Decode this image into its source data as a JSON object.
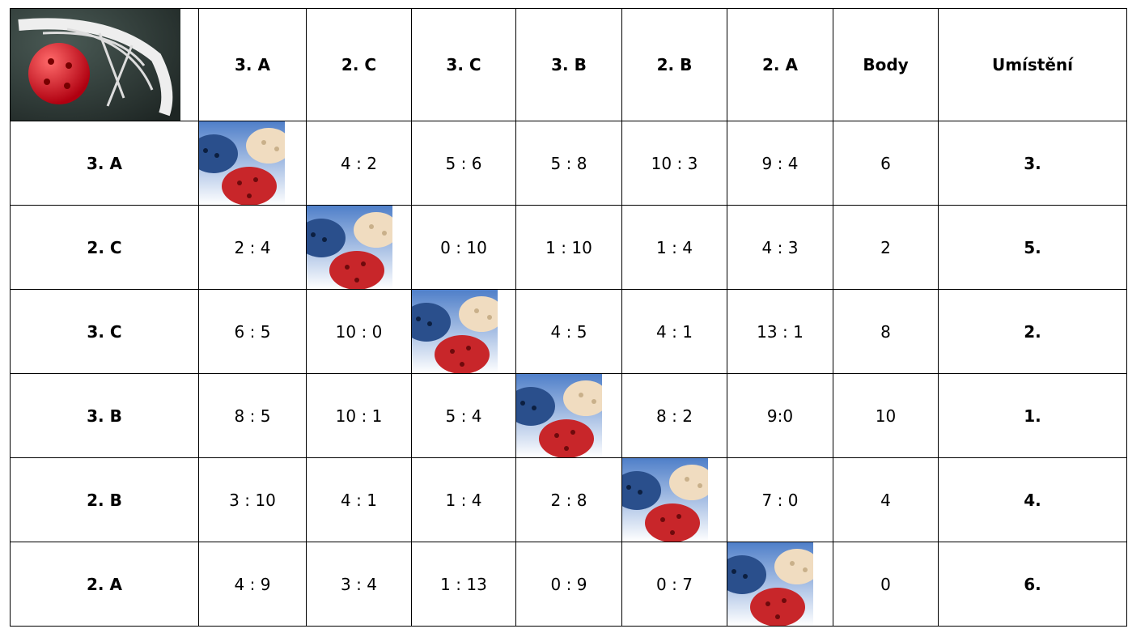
{
  "table": {
    "columns": [
      "3. A",
      "2. C",
      "3. C",
      "3. B",
      "2. B",
      "2. A",
      "Body",
      "Umístění"
    ],
    "rows": [
      {
        "team": "3. A",
        "results": [
          null,
          "4 : 2",
          "5 : 6",
          "5 : 8",
          "10 : 3",
          "9 : 4"
        ],
        "points": 6,
        "rank": "3."
      },
      {
        "team": "2. C",
        "results": [
          "2 : 4",
          null,
          "0 : 10",
          "1 : 10",
          "1 : 4",
          "4 : 3"
        ],
        "points": 2,
        "rank": "5."
      },
      {
        "team": "3. C",
        "results": [
          "6 : 5",
          "10 : 0",
          null,
          "4 : 5",
          "4 : 1",
          "13 : 1"
        ],
        "points": 8,
        "rank": "2."
      },
      {
        "team": "3. B",
        "results": [
          "8 : 5",
          "10 : 1",
          "5 : 4",
          null,
          "8 : 2",
          "9:0"
        ],
        "points": 10,
        "rank": "1."
      },
      {
        "team": "2. B",
        "results": [
          "3 : 10",
          "4 : 1",
          "1 : 4",
          "2 : 8",
          null,
          "7 : 0"
        ],
        "points": 4,
        "rank": "4."
      },
      {
        "team": "2. A",
        "results": [
          "4 : 9",
          "3 : 4",
          "1 : 13",
          "0 : 9",
          "0 : 7",
          null
        ],
        "points": 0,
        "rank": "6."
      }
    ]
  }
}
